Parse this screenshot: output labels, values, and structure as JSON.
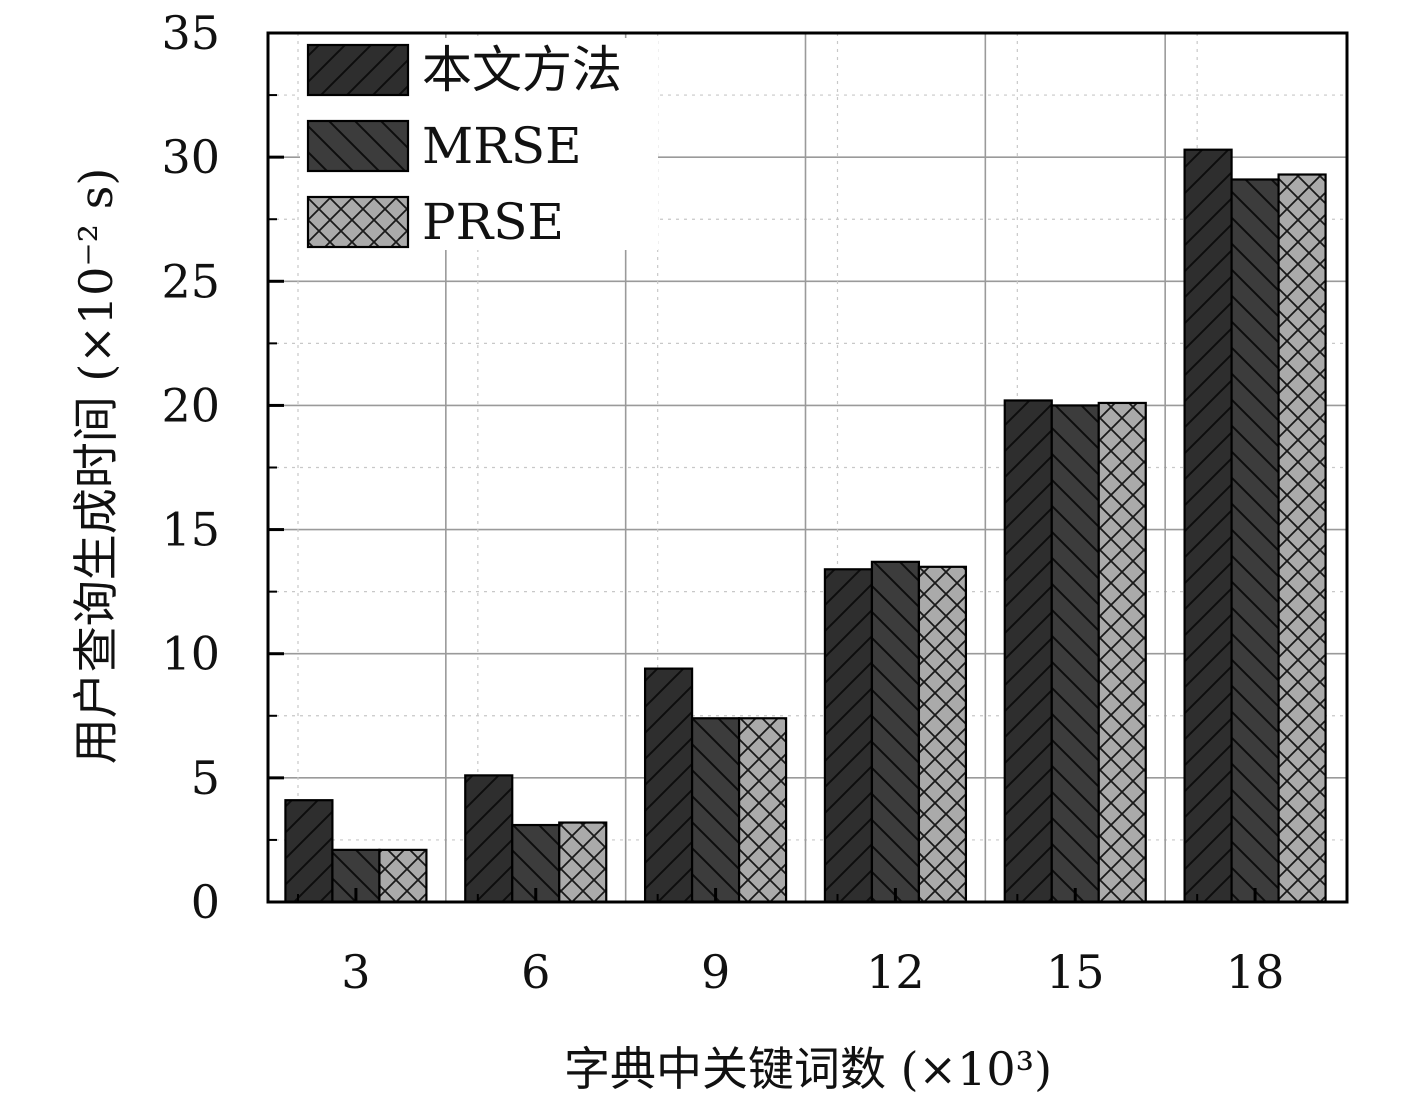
{
  "chart_data": {
    "type": "bar",
    "xlabel": "字典中关键词数 (×10³)",
    "ylabel": "用户查询生成时间 (×10⁻² s)",
    "categories": [
      "3",
      "6",
      "9",
      "12",
      "15",
      "18"
    ],
    "ylim": [
      0,
      35
    ],
    "yticks": [
      0,
      5,
      10,
      15,
      20,
      25,
      30,
      35
    ],
    "grid": true,
    "legend_position": "top-left",
    "series": [
      {
        "name": "本文方法",
        "values": [
          4.1,
          5.1,
          9.4,
          13.4,
          20.2,
          30.3
        ],
        "pattern": "diag-right",
        "color": "#2e2e2e"
      },
      {
        "name": "MRSE",
        "values": [
          2.1,
          3.1,
          7.4,
          13.7,
          20.0,
          29.1
        ],
        "pattern": "diag-left",
        "color": "#3c3c3c"
      },
      {
        "name": "PRSE",
        "values": [
          2.1,
          3.2,
          7.4,
          13.5,
          20.1,
          29.3
        ],
        "pattern": "crosshatch",
        "color": "#aaaaaa"
      }
    ]
  }
}
